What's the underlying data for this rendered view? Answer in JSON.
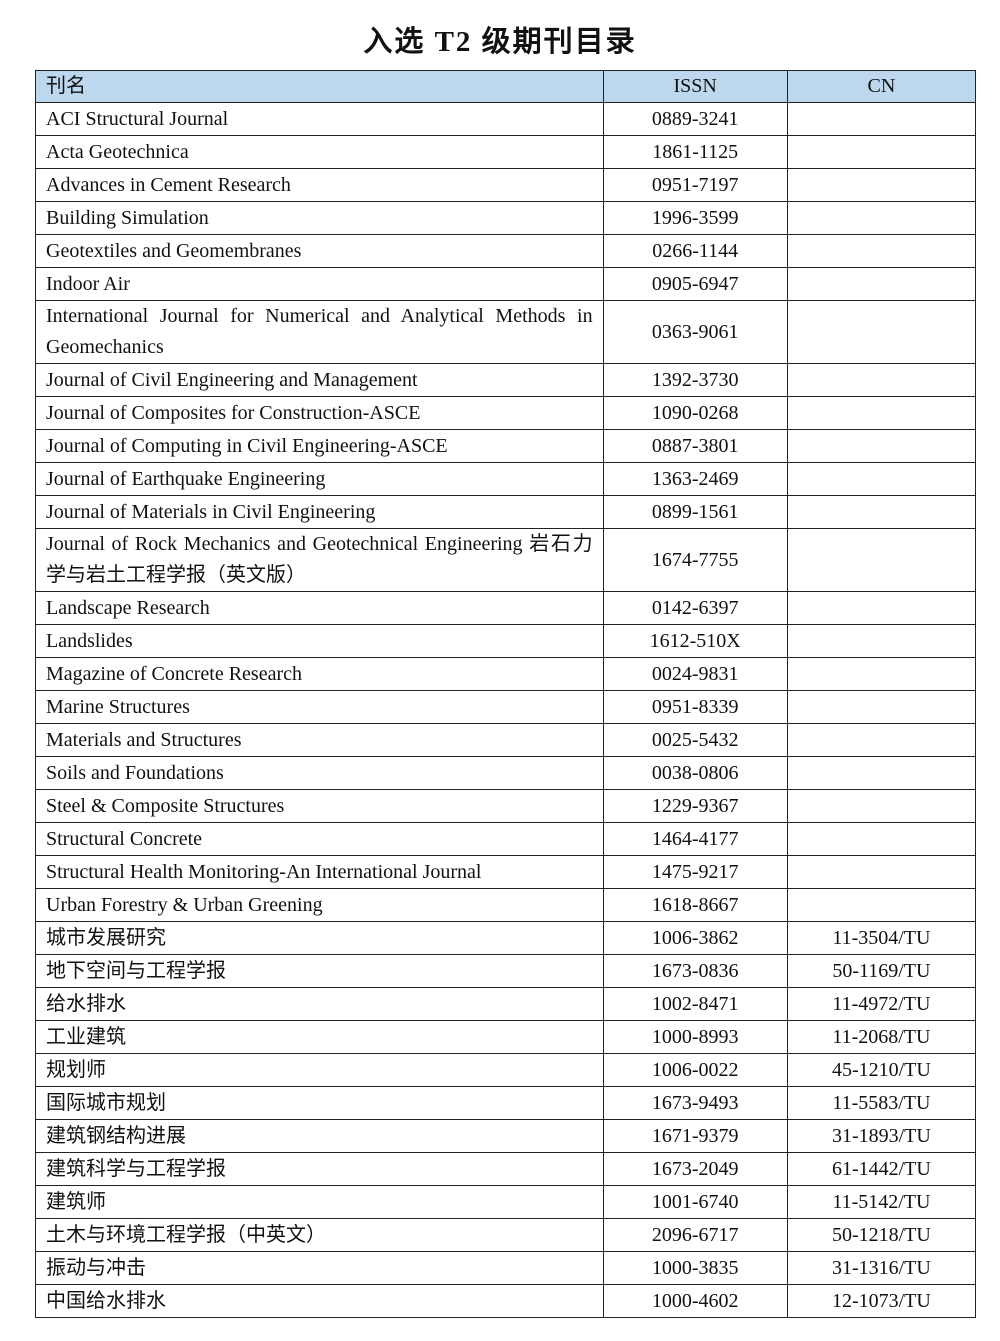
{
  "title": "入选 T2 级期刊目录",
  "headers": {
    "name": "刊名",
    "issn": "ISSN",
    "cn": "CN"
  },
  "header_color": "#bdd7ee",
  "rows": [
    {
      "name": "ACI Structural Journal",
      "issn": "0889-3241",
      "cn": ""
    },
    {
      "name": "Acta Geotechnica",
      "issn": "1861-1125",
      "cn": ""
    },
    {
      "name": "Advances in Cement Research",
      "issn": "0951-7197",
      "cn": ""
    },
    {
      "name": "Building Simulation",
      "issn": "1996-3599",
      "cn": ""
    },
    {
      "name": "Geotextiles and Geomembranes",
      "issn": "0266-1144",
      "cn": ""
    },
    {
      "name": "Indoor Air",
      "issn": "0905-6947",
      "cn": ""
    },
    {
      "name": "International Journal for Numerical and Analytical Methods in Geomechanics",
      "issn": "0363-9061",
      "cn": ""
    },
    {
      "name": "Journal of Civil Engineering and Management",
      "issn": "1392-3730",
      "cn": ""
    },
    {
      "name": "Journal of Composites for Construction-ASCE",
      "issn": "1090-0268",
      "cn": ""
    },
    {
      "name": "Journal of Computing in Civil Engineering-ASCE",
      "issn": "0887-3801",
      "cn": ""
    },
    {
      "name": "Journal of Earthquake Engineering",
      "issn": "1363-2469",
      "cn": ""
    },
    {
      "name": "Journal of Materials in Civil Engineering",
      "issn": "0899-1561",
      "cn": ""
    },
    {
      "name": "Journal of Rock Mechanics and Geotechnical Engineering 岩石力学与岩土工程学报（英文版）",
      "issn": "1674-7755",
      "cn": ""
    },
    {
      "name": "Landscape Research",
      "issn": "0142-6397",
      "cn": ""
    },
    {
      "name": "Landslides",
      "issn": "1612-510X",
      "cn": ""
    },
    {
      "name": "Magazine of Concrete Research",
      "issn": "0024-9831",
      "cn": ""
    },
    {
      "name": "Marine Structures",
      "issn": "0951-8339",
      "cn": ""
    },
    {
      "name": "Materials and Structures",
      "issn": "0025-5432",
      "cn": ""
    },
    {
      "name": "Soils and Foundations",
      "issn": "0038-0806",
      "cn": ""
    },
    {
      "name": "Steel & Composite Structures",
      "issn": "1229-9367",
      "cn": ""
    },
    {
      "name": "Structural Concrete",
      "issn": "1464-4177",
      "cn": ""
    },
    {
      "name": "Structural Health Monitoring-An International Journal",
      "issn": "1475-9217",
      "cn": ""
    },
    {
      "name": "Urban Forestry & Urban Greening",
      "issn": "1618-8667",
      "cn": ""
    },
    {
      "name": "城市发展研究",
      "issn": "1006-3862",
      "cn": "11-3504/TU"
    },
    {
      "name": "地下空间与工程学报",
      "issn": "1673-0836",
      "cn": "50-1169/TU"
    },
    {
      "name": "给水排水",
      "issn": "1002-8471",
      "cn": "11-4972/TU"
    },
    {
      "name": "工业建筑",
      "issn": "1000-8993",
      "cn": "11-2068/TU"
    },
    {
      "name": "规划师",
      "issn": "1006-0022",
      "cn": "45-1210/TU"
    },
    {
      "name": "国际城市规划",
      "issn": "1673-9493",
      "cn": "11-5583/TU"
    },
    {
      "name": "建筑钢结构进展",
      "issn": "1671-9379",
      "cn": "31-1893/TU"
    },
    {
      "name": "建筑科学与工程学报",
      "issn": "1673-2049",
      "cn": "61-1442/TU"
    },
    {
      "name": "建筑师",
      "issn": "1001-6740",
      "cn": "11-5142/TU"
    },
    {
      "name": "土木与环境工程学报（中英文）",
      "issn": "2096-6717",
      "cn": "50-1218/TU"
    },
    {
      "name": "振动与冲击",
      "issn": "1000-3835",
      "cn": "31-1316/TU"
    },
    {
      "name": "中国给水排水",
      "issn": "1000-4602",
      "cn": "12-1073/TU"
    }
  ]
}
